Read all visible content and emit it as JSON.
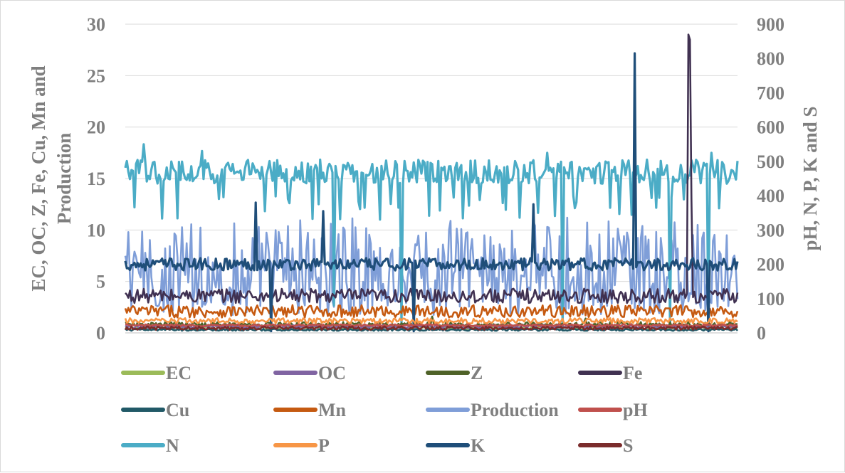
{
  "chart_data": {
    "type": "line",
    "title": "",
    "x_points": 400,
    "left_axis": {
      "label_line1": "EC, OC, Z, Fe, Cu, Mn and",
      "label_line2": "Production",
      "ylim": [
        0,
        30
      ],
      "ticks": [
        0,
        5,
        10,
        15,
        20,
        25,
        30
      ],
      "tick_labels": [
        "0",
        "5",
        "10",
        "15",
        "20",
        "25",
        "30"
      ]
    },
    "right_axis": {
      "label": "pH, N, P, K and S",
      "ylim": [
        0,
        900
      ],
      "ticks": [
        0,
        100,
        200,
        300,
        400,
        500,
        600,
        700,
        800,
        900
      ],
      "tick_labels": [
        "0",
        "100",
        "200",
        "300",
        "400",
        "500",
        "600",
        "700",
        "800",
        "900"
      ]
    },
    "grid": true,
    "legend_position": "bottom",
    "series": [
      {
        "name": "EC",
        "color": "#9bbb59",
        "axis": "left",
        "base": 0.5,
        "noise": 0.15,
        "spikes": []
      },
      {
        "name": "OC",
        "color": "#8064a2",
        "axis": "left",
        "base": 0.6,
        "noise": 0.15,
        "spikes": []
      },
      {
        "name": "Z",
        "color": "#4f6228",
        "axis": "left",
        "base": 0.8,
        "noise": 0.25,
        "spikes": [
          {
            "i": 200,
            "v": 1.6
          },
          {
            "i": 300,
            "v": 1.4
          }
        ]
      },
      {
        "name": "Fe",
        "color": "#403151",
        "axis": "left",
        "base": 3.6,
        "noise": 0.7,
        "spikes": [
          {
            "i": 367,
            "v": 29.0
          },
          {
            "i": 368,
            "v": 28.5
          },
          {
            "i": 369,
            "v": 13.0
          }
        ]
      },
      {
        "name": "Cu",
        "color": "#215967",
        "axis": "left",
        "base": 0.3,
        "noise": 0.1,
        "spikes": []
      },
      {
        "name": "Mn",
        "color": "#c55a11",
        "axis": "left",
        "base": 2.1,
        "noise": 0.6,
        "spikes": []
      },
      {
        "name": "Production",
        "color": "#7f9ed8",
        "axis": "left",
        "base": 6.5,
        "noise": 4.0,
        "spikes": []
      },
      {
        "name": "pH",
        "color": "#c0504d",
        "axis": "right",
        "base": 22,
        "noise": 3,
        "spikes": []
      },
      {
        "name": "N",
        "color": "#4bacc6",
        "axis": "right",
        "base": 470,
        "noise": 35,
        "spikes": [
          {
            "i": 12,
            "v": 550
          },
          {
            "i": 50,
            "v": 530
          },
          {
            "i": 136,
            "v": 80
          },
          {
            "i": 180,
            "v": 20
          },
          {
            "i": 275,
            "v": 525
          },
          {
            "i": 285,
            "v": 10
          },
          {
            "i": 355,
            "v": 20
          },
          {
            "i": 380,
            "v": 30
          },
          {
            "i": 382,
            "v": 525
          }
        ]
      },
      {
        "name": "P",
        "color": "#f79646",
        "axis": "right",
        "base": 35,
        "noise": 8,
        "spikes": []
      },
      {
        "name": "K",
        "color": "#1f4e79",
        "axis": "right",
        "base": 200,
        "noise": 18,
        "spikes": [
          {
            "i": 85,
            "v": 380
          },
          {
            "i": 95,
            "v": 5
          },
          {
            "i": 129,
            "v": 355
          },
          {
            "i": 188,
            "v": 5
          },
          {
            "i": 266,
            "v": 375
          },
          {
            "i": 332,
            "v": 815
          },
          {
            "i": 380,
            "v": 5
          }
        ]
      },
      {
        "name": "S",
        "color": "#7b2c2c",
        "axis": "right",
        "base": 14,
        "noise": 5,
        "spikes": []
      }
    ],
    "legend_order": [
      "EC",
      "OC",
      "Z",
      "Fe",
      "Cu",
      "Mn",
      "Production",
      "pH",
      "N",
      "P",
      "K",
      "S"
    ]
  }
}
